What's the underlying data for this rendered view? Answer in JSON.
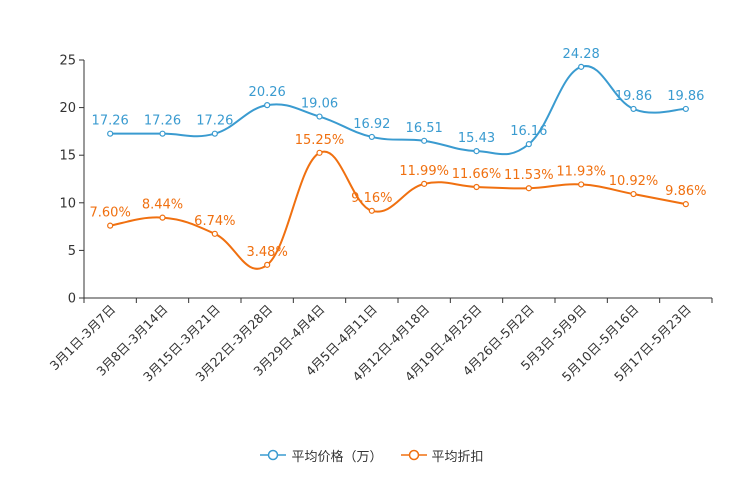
{
  "chart_data": {
    "type": "line",
    "title": "",
    "xlabel": "",
    "ylabel": "",
    "ylim": [
      0,
      25
    ],
    "yticks": [
      "0",
      "5",
      "10",
      "15",
      "20",
      "25"
    ],
    "grid": false,
    "legend_position": "bottom-center",
    "categories": [
      "3月1日-3月7日",
      "3月8日-3月14日",
      "3月15日-3月21日",
      "3月22日-3月28日",
      "3月29日-4月4日",
      "4月5日-4月11日",
      "4月12日-4月18日",
      "4月19日-4月25日",
      "4月26日-5月2日",
      "5月3日-5月9日",
      "5月10日-5月16日",
      "5月17日-5月23日"
    ],
    "series": [
      {
        "name": "平均价格（万）",
        "color": "#3A9BD0",
        "values": [
          17.26,
          17.26,
          17.26,
          20.26,
          19.06,
          16.92,
          16.51,
          15.43,
          16.16,
          24.28,
          19.86,
          19.86
        ],
        "labels": [
          "17.26",
          "17.26",
          "17.26",
          "20.26",
          "19.06",
          "16.92",
          "16.51",
          "15.43",
          "16.16",
          "24.28",
          "19.86",
          "19.86"
        ]
      },
      {
        "name": "平均折扣",
        "color": "#F07010",
        "values": [
          7.6,
          8.44,
          6.74,
          3.48,
          15.25,
          9.16,
          11.99,
          11.66,
          11.53,
          11.93,
          10.92,
          9.86
        ],
        "labels": [
          "7.60%",
          "8.44%",
          "6.74%",
          "3.48%",
          "15.25%",
          "9.16%",
          "11.99%",
          "11.66%",
          "11.53%",
          "11.93%",
          "10.92%",
          "9.86%"
        ]
      }
    ]
  }
}
